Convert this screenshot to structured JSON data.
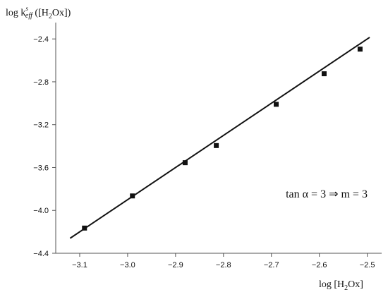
{
  "chart_data": {
    "type": "scatter",
    "title": "",
    "xlabel": {
      "main": "log [H",
      "sub": "2",
      "rest": "Ox]"
    },
    "ylabel": {
      "main": "log k",
      "sup": "s",
      "sub": "eff",
      "rest_a": " ([H",
      "sub2": "2",
      "rest_b": "Ox])"
    },
    "xlim": [
      -3.15,
      -2.47
    ],
    "ylim": [
      -4.4,
      -2.3
    ],
    "x_ticks": [
      -3.1,
      -3.0,
      -2.9,
      -2.8,
      -2.7,
      -2.6,
      -2.5
    ],
    "x_tick_labels": [
      "−3.1",
      "−3.0",
      "−2.9",
      "−2.8",
      "−2.7",
      "−2.6",
      "−2.5"
    ],
    "y_ticks": [
      -4.4,
      -4.0,
      -3.6,
      -3.2,
      -2.8,
      -2.4
    ],
    "y_tick_labels": [
      "−4.4",
      "−4.0",
      "−3.6",
      "−3.2",
      "−2.8",
      "−2.4"
    ],
    "grid": false,
    "series": [
      {
        "x": [
          -3.09,
          -2.99,
          -2.88,
          -2.815,
          -2.69,
          -2.59,
          -2.515
        ],
        "y": [
          -4.165,
          -3.865,
          -3.555,
          -3.395,
          -3.01,
          -2.725,
          -2.495
        ]
      }
    ],
    "fit_line": {
      "x": [
        -3.12,
        -2.495
      ],
      "y": [
        -4.26,
        -2.385
      ]
    },
    "annotation": {
      "text": "tan α = 3  ⇒  m = 3",
      "x": -2.67,
      "y": -3.88
    }
  }
}
